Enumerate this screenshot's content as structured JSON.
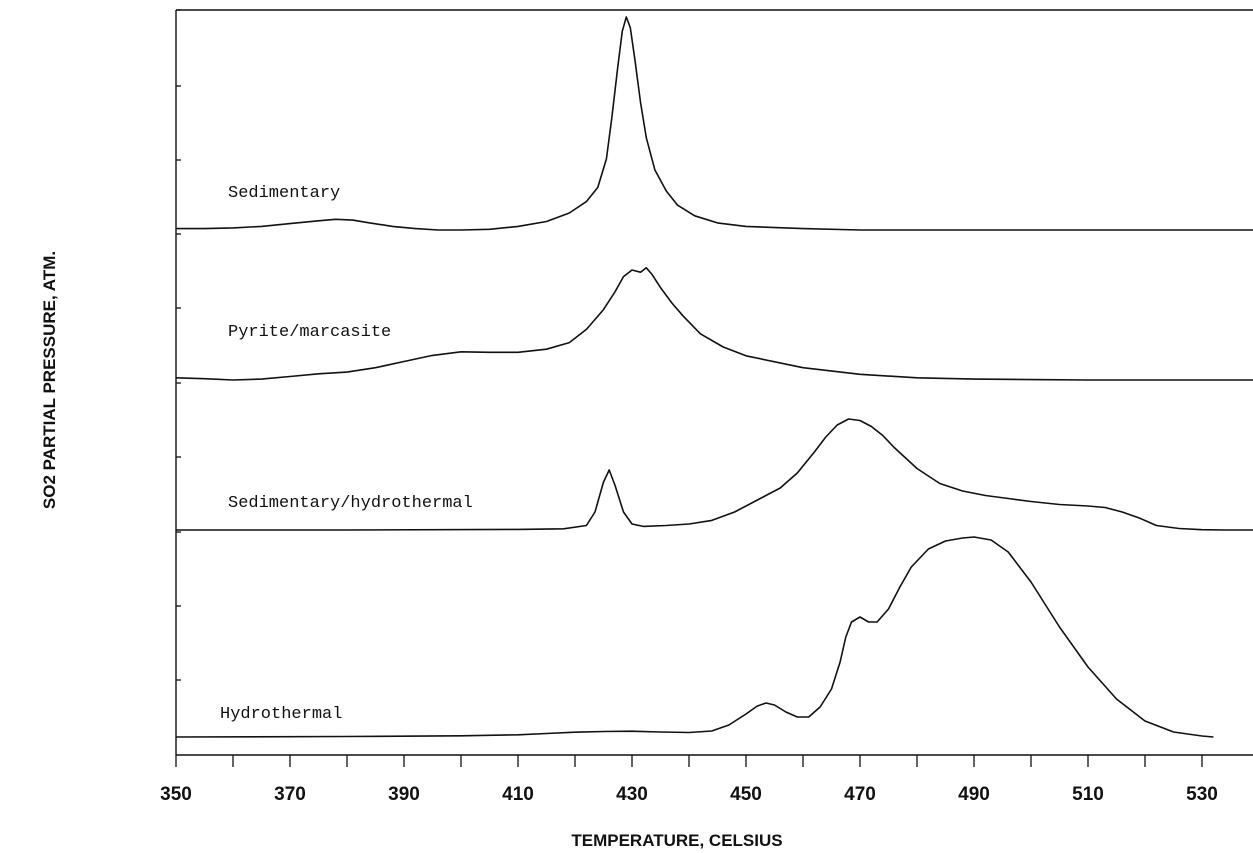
{
  "chart_data": {
    "type": "line",
    "xlabel": "TEMPERATURE, CELSIUS",
    "ylabel": "SO2 PARTIAL PRESSURE, ATM.",
    "xlim": [
      350,
      540
    ],
    "x_tick_labels": [
      350,
      370,
      390,
      410,
      430,
      450,
      470,
      490,
      510,
      530
    ],
    "x_minor_step": 10,
    "layout": "stacked-offset curves, each series on its own baseline, no y tick values",
    "grid": false,
    "series": [
      {
        "name": "Sedimentary",
        "x": [
          350,
          355,
          360,
          365,
          370,
          375,
          378,
          381,
          384,
          388,
          392,
          396,
          400,
          405,
          410,
          415,
          419,
          422,
          424,
          425.5,
          426.5,
          427.5,
          428.3,
          429,
          429.7,
          430.5,
          431.5,
          432.5,
          434,
          436,
          438,
          441,
          445,
          450,
          460,
          470,
          490,
          510,
          540
        ],
        "y": [
          0.02,
          0.02,
          0.03,
          0.05,
          0.09,
          0.13,
          0.15,
          0.14,
          0.1,
          0.05,
          0.02,
          0.0,
          0.0,
          0.01,
          0.05,
          0.12,
          0.24,
          0.4,
          0.6,
          1.0,
          1.6,
          2.3,
          2.8,
          3.0,
          2.85,
          2.4,
          1.8,
          1.3,
          0.85,
          0.55,
          0.35,
          0.2,
          0.1,
          0.05,
          0.02,
          0.0,
          0.0,
          0.0,
          0.0
        ]
      },
      {
        "name": "Pyrite/marcasite",
        "x": [
          350,
          355,
          360,
          365,
          370,
          375,
          380,
          385,
          390,
          395,
          400,
          405,
          410,
          415,
          419,
          422,
          425,
          427,
          428.5,
          430,
          431.5,
          432.5,
          433.5,
          435,
          437,
          439,
          442,
          446,
          450,
          460,
          470,
          480,
          490,
          500,
          510,
          520,
          540
        ],
        "y": [
          0.05,
          0.03,
          0.0,
          0.02,
          0.08,
          0.14,
          0.18,
          0.28,
          0.42,
          0.56,
          0.64,
          0.63,
          0.63,
          0.7,
          0.85,
          1.15,
          1.6,
          2.0,
          2.35,
          2.5,
          2.45,
          2.55,
          2.4,
          2.1,
          1.75,
          1.45,
          1.05,
          0.75,
          0.55,
          0.28,
          0.13,
          0.05,
          0.02,
          0.01,
          0.0,
          0.0,
          0.0
        ]
      },
      {
        "name": "Sedimentary/hydrothermal",
        "x": [
          350,
          380,
          410,
          418,
          422,
          423.5,
          425,
          426,
          427,
          428.5,
          430,
          432,
          436,
          440,
          444,
          448,
          452,
          456,
          459,
          462,
          464,
          466,
          468,
          470,
          472,
          474,
          476,
          480,
          484,
          488,
          492,
          496,
          500,
          505,
          510,
          513,
          516,
          519,
          522,
          526,
          530,
          534,
          540
        ],
        "y": [
          0.0,
          0.0,
          0.02,
          0.04,
          0.15,
          0.6,
          1.6,
          2.0,
          1.5,
          0.6,
          0.2,
          0.12,
          0.15,
          0.2,
          0.32,
          0.6,
          1.0,
          1.4,
          1.9,
          2.6,
          3.1,
          3.5,
          3.7,
          3.65,
          3.45,
          3.15,
          2.75,
          2.05,
          1.55,
          1.3,
          1.15,
          1.05,
          0.95,
          0.85,
          0.8,
          0.75,
          0.6,
          0.4,
          0.15,
          0.05,
          0.01,
          0.0,
          0.0
        ]
      },
      {
        "name": "Hydrothermal",
        "x": [
          350,
          380,
          400,
          410,
          415,
          420,
          425,
          430,
          435,
          440,
          444,
          447,
          450,
          452,
          453.5,
          455,
          457,
          459,
          461,
          463,
          465,
          466.5,
          467.5,
          468.5,
          470,
          471.5,
          473,
          475,
          477,
          479,
          482,
          485,
          488,
          490,
          493,
          496,
          500,
          505,
          510,
          515,
          520,
          525,
          530,
          532
        ],
        "y": [
          0.0,
          0.05,
          0.12,
          0.22,
          0.35,
          0.48,
          0.55,
          0.58,
          0.5,
          0.45,
          0.6,
          1.2,
          2.3,
          3.1,
          3.4,
          3.2,
          2.5,
          2.0,
          2.0,
          3.0,
          4.8,
          7.5,
          10.0,
          11.5,
          12.0,
          11.5,
          11.5,
          12.8,
          15.0,
          17.0,
          18.8,
          19.6,
          19.9,
          20.0,
          19.7,
          18.5,
          15.5,
          11.0,
          7.0,
          3.8,
          1.6,
          0.5,
          0.1,
          0.0
        ]
      }
    ]
  }
}
